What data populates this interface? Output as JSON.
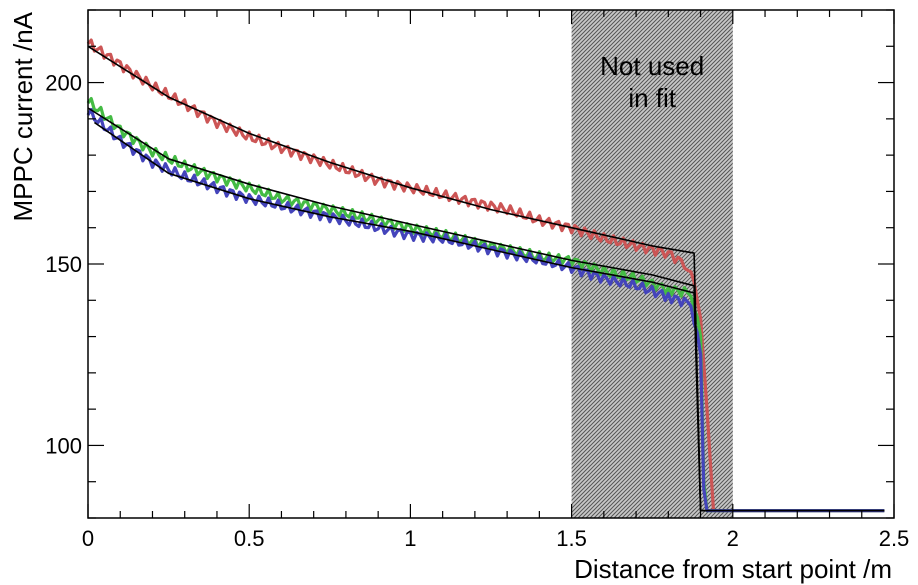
{
  "chart_data": {
    "type": "line",
    "title": "",
    "xlabel": "Distance from start point /m",
    "ylabel": "MPPC current /nA",
    "xlim": [
      0,
      2.5
    ],
    "ylim": [
      80,
      220
    ],
    "x_ticks": [
      "0",
      "0.5",
      "1",
      "1.5",
      "2",
      "2.5"
    ],
    "y_ticks": [
      "100",
      "150",
      "200"
    ],
    "grid": false,
    "legend": "none",
    "shaded_region": {
      "x": [
        1.5,
        2.0
      ],
      "label_lines": [
        "Not used",
        "in fit"
      ],
      "color": "#9a9a9a"
    },
    "series": [
      {
        "color": "#cc5555",
        "kind": "data",
        "x": [
          0,
          0.1,
          0.2,
          0.3,
          0.4,
          0.5,
          0.6,
          0.7,
          0.8,
          0.9,
          1.0,
          1.1,
          1.2,
          1.3,
          1.4,
          1.5,
          1.6,
          1.7,
          1.8,
          1.85,
          1.88,
          1.9,
          1.92,
          1.94,
          2.0,
          2.2,
          2.4,
          2.47
        ],
        "y": [
          211,
          205,
          199,
          194,
          189,
          185,
          182,
          179,
          176,
          173,
          171,
          169,
          167,
          165,
          162,
          160,
          157,
          155,
          153,
          150,
          145,
          135,
          110,
          82,
          82,
          82,
          82,
          82
        ]
      },
      {
        "color": "#44bb44",
        "kind": "data",
        "x": [
          0,
          0.1,
          0.2,
          0.3,
          0.4,
          0.5,
          0.6,
          0.7,
          0.8,
          0.9,
          1.0,
          1.1,
          1.2,
          1.3,
          1.4,
          1.5,
          1.6,
          1.7,
          1.8,
          1.87,
          1.9,
          1.91,
          1.92,
          2.0,
          2.2,
          2.4,
          2.47
        ],
        "y": [
          195,
          187,
          181,
          177,
          174,
          171,
          168,
          166,
          164,
          162,
          160,
          158,
          156,
          154,
          152,
          151,
          148,
          146,
          143,
          142,
          130,
          90,
          82,
          82,
          82,
          82,
          82
        ]
      },
      {
        "color": "#4444bb",
        "kind": "data",
        "x": [
          0,
          0.1,
          0.2,
          0.3,
          0.4,
          0.5,
          0.6,
          0.7,
          0.8,
          0.9,
          1.0,
          1.1,
          1.2,
          1.3,
          1.4,
          1.5,
          1.6,
          1.7,
          1.8,
          1.87,
          1.9,
          1.91,
          1.92,
          2.0,
          2.2,
          2.4,
          2.47
        ],
        "y": [
          192,
          184,
          178,
          174,
          171,
          168,
          166,
          164,
          162,
          160,
          158,
          157,
          155,
          153,
          151,
          149,
          146,
          144,
          141,
          139,
          125,
          88,
          82,
          82,
          82,
          82,
          82
        ]
      },
      {
        "color": "#000000",
        "kind": "fit",
        "x": [
          0,
          0.25,
          0.5,
          0.75,
          1.0,
          1.25,
          1.5,
          1.75,
          1.88,
          1.9,
          1.95,
          2.47
        ],
        "y": [
          210,
          196,
          186,
          178,
          171,
          165,
          160,
          155,
          153,
          82,
          82,
          82
        ]
      },
      {
        "color": "#000000",
        "kind": "fit",
        "x": [
          0,
          0.25,
          0.5,
          0.75,
          1.0,
          1.25,
          1.5,
          1.75,
          1.88,
          1.9,
          1.95,
          2.47
        ],
        "y": [
          193,
          179,
          172,
          166,
          161,
          156,
          151,
          147,
          144,
          82,
          82,
          82
        ]
      },
      {
        "color": "#000000",
        "kind": "fit",
        "x": [
          0.02,
          0.25,
          0.5,
          0.75,
          1.0,
          1.25,
          1.5,
          1.75,
          1.88,
          1.9,
          1.95,
          2.47
        ],
        "y": [
          189,
          175,
          168,
          163,
          159,
          154,
          149,
          145,
          142,
          82,
          82,
          82
        ]
      }
    ]
  }
}
